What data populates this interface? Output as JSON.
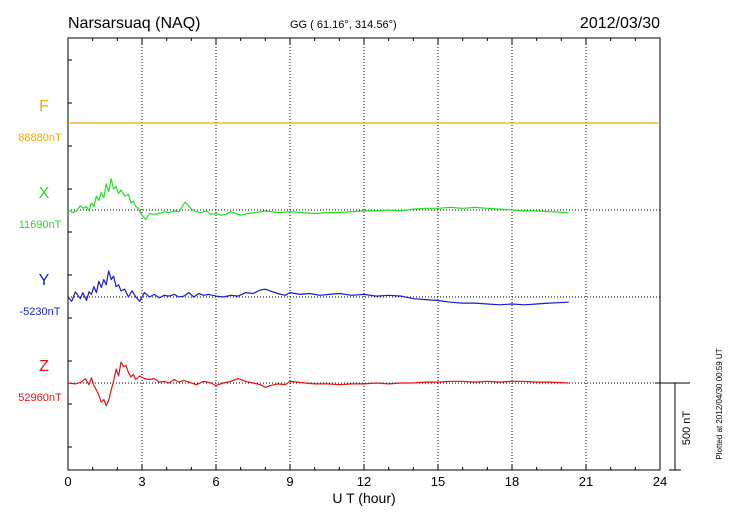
{
  "header": {
    "station": "Narsarsuaq (NAQ)",
    "coords": "GG ( 61.16°, 314.56°)",
    "date": "2012/03/30"
  },
  "side_note": "Plotted at 2012/04/30 00:59 UT",
  "chart_data": {
    "type": "line",
    "title": "Narsarsuaq (NAQ)",
    "xlabel": "U T (hour)",
    "xlim": [
      0,
      24
    ],
    "x_ticks": [
      0,
      3,
      6,
      9,
      12,
      15,
      18,
      21,
      24
    ],
    "x_tick_labels": [
      "0",
      "3",
      "6",
      "9",
      "12",
      "15",
      "18",
      "21",
      "24"
    ],
    "data_end_hour": 20.3,
    "scale_bar": {
      "value_nT": 500,
      "label": "500 nT"
    },
    "series": [
      {
        "name": "F",
        "baseline_nT": 88880,
        "baseline_label": "88880nT",
        "color": "#f0a800",
        "points": [
          [
            0,
            0
          ],
          [
            24,
            0
          ]
        ]
      },
      {
        "name": "X",
        "baseline_nT": 11690,
        "baseline_label": "11690nT",
        "color": "#1ee01e",
        "points": [
          [
            0.0,
            0
          ],
          [
            0.2,
            -15
          ],
          [
            0.35,
            -5
          ],
          [
            0.5,
            25
          ],
          [
            0.6,
            10
          ],
          [
            0.75,
            20
          ],
          [
            0.85,
            -5
          ],
          [
            0.95,
            40
          ],
          [
            1.05,
            20
          ],
          [
            1.15,
            80
          ],
          [
            1.25,
            55
          ],
          [
            1.35,
            100
          ],
          [
            1.45,
            70
          ],
          [
            1.55,
            150
          ],
          [
            1.65,
            105
          ],
          [
            1.75,
            180
          ],
          [
            1.85,
            120
          ],
          [
            1.95,
            135
          ],
          [
            2.05,
            95
          ],
          [
            2.15,
            115
          ],
          [
            2.3,
            80
          ],
          [
            2.45,
            90
          ],
          [
            2.55,
            40
          ],
          [
            2.65,
            50
          ],
          [
            2.75,
            20
          ],
          [
            2.85,
            10
          ],
          [
            3.0,
            -30
          ],
          [
            3.15,
            -55
          ],
          [
            3.3,
            -20
          ],
          [
            3.5,
            -25
          ],
          [
            3.7,
            -20
          ],
          [
            3.9,
            -10
          ],
          [
            4.1,
            -15
          ],
          [
            4.3,
            -5
          ],
          [
            4.5,
            -10
          ],
          [
            4.65,
            25
          ],
          [
            4.75,
            45
          ],
          [
            4.85,
            30
          ],
          [
            5.0,
            5
          ],
          [
            5.2,
            -10
          ],
          [
            5.4,
            -15
          ],
          [
            5.6,
            -5
          ],
          [
            5.8,
            -25
          ],
          [
            6.0,
            -20
          ],
          [
            6.2,
            -30
          ],
          [
            6.4,
            -25
          ],
          [
            6.6,
            -10
          ],
          [
            6.8,
            -20
          ],
          [
            7.0,
            -30
          ],
          [
            7.3,
            -20
          ],
          [
            7.6,
            -15
          ],
          [
            8.0,
            -5
          ],
          [
            8.5,
            -15
          ],
          [
            9.0,
            -10
          ],
          [
            9.5,
            -15
          ],
          [
            10.0,
            -20
          ],
          [
            10.5,
            -15
          ],
          [
            11.0,
            -15
          ],
          [
            11.5,
            -10
          ],
          [
            12.0,
            -5
          ],
          [
            12.5,
            -5
          ],
          [
            13.0,
            0
          ],
          [
            13.5,
            -5
          ],
          [
            14.0,
            5
          ],
          [
            14.5,
            10
          ],
          [
            15.0,
            10
          ],
          [
            15.5,
            15
          ],
          [
            16.0,
            10
          ],
          [
            16.5,
            15
          ],
          [
            17.0,
            10
          ],
          [
            17.5,
            5
          ],
          [
            18.0,
            0
          ],
          [
            18.5,
            -5
          ],
          [
            19.0,
            -5
          ],
          [
            19.5,
            -10
          ],
          [
            20.3,
            -15
          ]
        ]
      },
      {
        "name": "Y",
        "baseline_nT": -5230,
        "baseline_label": "-5230nT",
        "color": "#1a1ad0",
        "points": [
          [
            0.0,
            0
          ],
          [
            0.15,
            -25
          ],
          [
            0.3,
            30
          ],
          [
            0.5,
            -10
          ],
          [
            0.6,
            25
          ],
          [
            0.75,
            -20
          ],
          [
            0.85,
            30
          ],
          [
            0.95,
            15
          ],
          [
            1.05,
            60
          ],
          [
            1.15,
            25
          ],
          [
            1.25,
            90
          ],
          [
            1.35,
            55
          ],
          [
            1.45,
            100
          ],
          [
            1.55,
            70
          ],
          [
            1.65,
            150
          ],
          [
            1.75,
            100
          ],
          [
            1.85,
            120
          ],
          [
            1.95,
            60
          ],
          [
            2.05,
            70
          ],
          [
            2.15,
            35
          ],
          [
            2.3,
            45
          ],
          [
            2.45,
            0
          ],
          [
            2.6,
            35
          ],
          [
            2.75,
            0
          ],
          [
            2.9,
            -25
          ],
          [
            3.1,
            25
          ],
          [
            3.3,
            0
          ],
          [
            3.5,
            15
          ],
          [
            3.7,
            -5
          ],
          [
            3.9,
            10
          ],
          [
            4.1,
            5
          ],
          [
            4.3,
            15
          ],
          [
            4.5,
            0
          ],
          [
            4.7,
            5
          ],
          [
            4.9,
            25
          ],
          [
            5.1,
            0
          ],
          [
            5.3,
            20
          ],
          [
            5.5,
            10
          ],
          [
            5.7,
            15
          ],
          [
            6.0,
            5
          ],
          [
            6.3,
            0
          ],
          [
            6.6,
            10
          ],
          [
            6.9,
            5
          ],
          [
            7.2,
            25
          ],
          [
            7.5,
            20
          ],
          [
            7.8,
            40
          ],
          [
            8.0,
            45
          ],
          [
            8.2,
            35
          ],
          [
            8.5,
            20
          ],
          [
            8.8,
            10
          ],
          [
            9.0,
            25
          ],
          [
            9.4,
            15
          ],
          [
            9.8,
            20
          ],
          [
            10.2,
            10
          ],
          [
            10.6,
            15
          ],
          [
            11.0,
            20
          ],
          [
            11.5,
            10
          ],
          [
            12.0,
            15
          ],
          [
            12.5,
            5
          ],
          [
            13.0,
            10
          ],
          [
            13.5,
            5
          ],
          [
            14.0,
            -10
          ],
          [
            14.5,
            -15
          ],
          [
            15.0,
            -20
          ],
          [
            15.5,
            -30
          ],
          [
            16.0,
            -35
          ],
          [
            16.5,
            -35
          ],
          [
            17.0,
            -40
          ],
          [
            17.5,
            -45
          ],
          [
            18.0,
            -40
          ],
          [
            18.5,
            -45
          ],
          [
            19.0,
            -40
          ],
          [
            19.5,
            -35
          ],
          [
            20.3,
            -30
          ]
        ]
      },
      {
        "name": "Z",
        "baseline_nT": 52960,
        "baseline_label": "52960nT",
        "color": "#e81010",
        "points": [
          [
            0.0,
            0
          ],
          [
            0.3,
            -5
          ],
          [
            0.55,
            5
          ],
          [
            0.7,
            25
          ],
          [
            0.85,
            -10
          ],
          [
            0.95,
            30
          ],
          [
            1.05,
            -15
          ],
          [
            1.15,
            -40
          ],
          [
            1.25,
            -70
          ],
          [
            1.35,
            -110
          ],
          [
            1.45,
            -95
          ],
          [
            1.55,
            -130
          ],
          [
            1.65,
            -100
          ],
          [
            1.75,
            -40
          ],
          [
            1.85,
            10
          ],
          [
            1.95,
            80
          ],
          [
            2.05,
            40
          ],
          [
            2.15,
            120
          ],
          [
            2.25,
            95
          ],
          [
            2.35,
            100
          ],
          [
            2.45,
            60
          ],
          [
            2.55,
            35
          ],
          [
            2.65,
            50
          ],
          [
            2.75,
            20
          ],
          [
            2.9,
            40
          ],
          [
            3.1,
            25
          ],
          [
            3.3,
            20
          ],
          [
            3.5,
            25
          ],
          [
            3.7,
            5
          ],
          [
            3.9,
            10
          ],
          [
            4.1,
            0
          ],
          [
            4.3,
            20
          ],
          [
            4.5,
            5
          ],
          [
            4.7,
            15
          ],
          [
            5.0,
            0
          ],
          [
            5.2,
            -10
          ],
          [
            5.5,
            10
          ],
          [
            5.8,
            0
          ],
          [
            6.0,
            -15
          ],
          [
            6.3,
            0
          ],
          [
            6.6,
            10
          ],
          [
            6.9,
            25
          ],
          [
            7.2,
            10
          ],
          [
            7.5,
            0
          ],
          [
            7.8,
            -10
          ],
          [
            8.0,
            -25
          ],
          [
            8.2,
            -15
          ],
          [
            8.5,
            -5
          ],
          [
            8.8,
            -10
          ],
          [
            9.0,
            10
          ],
          [
            9.3,
            5
          ],
          [
            9.6,
            0
          ],
          [
            10.0,
            -5
          ],
          [
            10.5,
            -5
          ],
          [
            11.0,
            -10
          ],
          [
            11.5,
            -5
          ],
          [
            12.0,
            -5
          ],
          [
            12.5,
            0
          ],
          [
            13.0,
            -5
          ],
          [
            13.5,
            0
          ],
          [
            14.0,
            0
          ],
          [
            14.5,
            5
          ],
          [
            15.0,
            5
          ],
          [
            15.5,
            10
          ],
          [
            16.0,
            10
          ],
          [
            16.5,
            5
          ],
          [
            17.0,
            10
          ],
          [
            17.5,
            5
          ],
          [
            18.0,
            10
          ],
          [
            18.5,
            10
          ],
          [
            19.0,
            5
          ],
          [
            19.5,
            5
          ],
          [
            20.3,
            0
          ]
        ]
      }
    ]
  }
}
